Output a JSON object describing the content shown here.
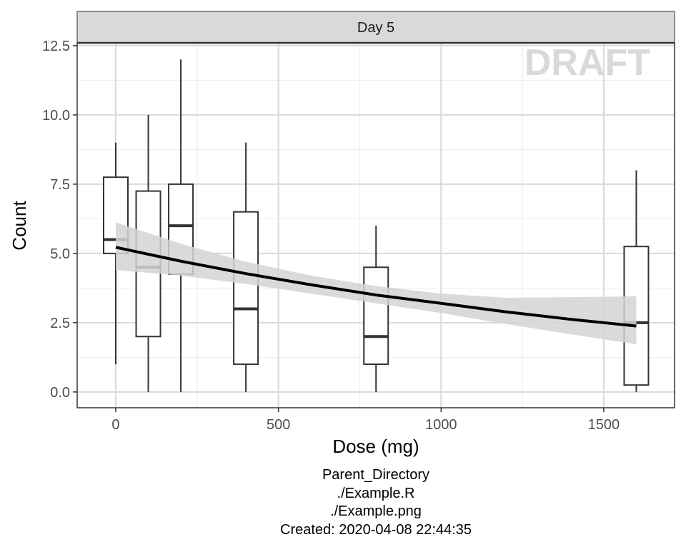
{
  "chart_data": {
    "type": "boxplot",
    "strip": "Day 5",
    "watermark": "DRAFT",
    "x_label": "Dose (mg)",
    "y_label": "Count",
    "xlim": [
      -118.6,
      1717.6
    ],
    "ylim": [
      -0.57,
      12.6
    ],
    "xticks": [
      0,
      500,
      1000,
      1500
    ],
    "yticks": [
      {
        "value": 0,
        "label": "0.0"
      },
      {
        "value": 2.5,
        "label": "2.5"
      },
      {
        "value": 5,
        "label": "5.0"
      },
      {
        "value": 7.5,
        "label": "7.5"
      },
      {
        "value": 10,
        "label": "10.0"
      },
      {
        "value": 12.5,
        "label": "12.5"
      }
    ],
    "xminor": [
      250,
      750,
      1250
    ],
    "yminor": [
      1.25,
      3.75,
      6.25,
      8.75,
      11.25
    ],
    "grid": true,
    "box_color": "#333333",
    "boxes": {
      "x": [
        0,
        100,
        200,
        400,
        800,
        1600
      ],
      "min": [
        1,
        0,
        0,
        0,
        0,
        0
      ],
      "q1": [
        5,
        2,
        4.25,
        1,
        1,
        0.25
      ],
      "median": [
        5.5,
        4.5,
        6,
        3,
        2,
        2.5
      ],
      "q3": [
        7.75,
        7.25,
        7.5,
        6.5,
        4.5,
        5.25
      ],
      "max": [
        9,
        10,
        12,
        9,
        6,
        8
      ]
    },
    "fit": {
      "color": "#000000",
      "band_color": "#d3d3d3",
      "x": [
        0,
        200,
        400,
        600,
        800,
        1000,
        1200,
        1400,
        1600
      ],
      "values": [
        5.22,
        4.72,
        4.27,
        3.87,
        3.5,
        3.2,
        2.89,
        2.62,
        2.38
      ],
      "lower": [
        4.4,
        4.2,
        3.9,
        3.55,
        3.2,
        2.85,
        2.45,
        2.08,
        1.72
      ],
      "upper": [
        6.12,
        5.35,
        4.7,
        4.2,
        3.82,
        3.55,
        3.4,
        3.42,
        3.45
      ]
    }
  },
  "footer": [
    "Parent_Directory",
    "./Example.R",
    "./Example.png",
    "Created: 2020-04-08 22:44:35"
  ]
}
